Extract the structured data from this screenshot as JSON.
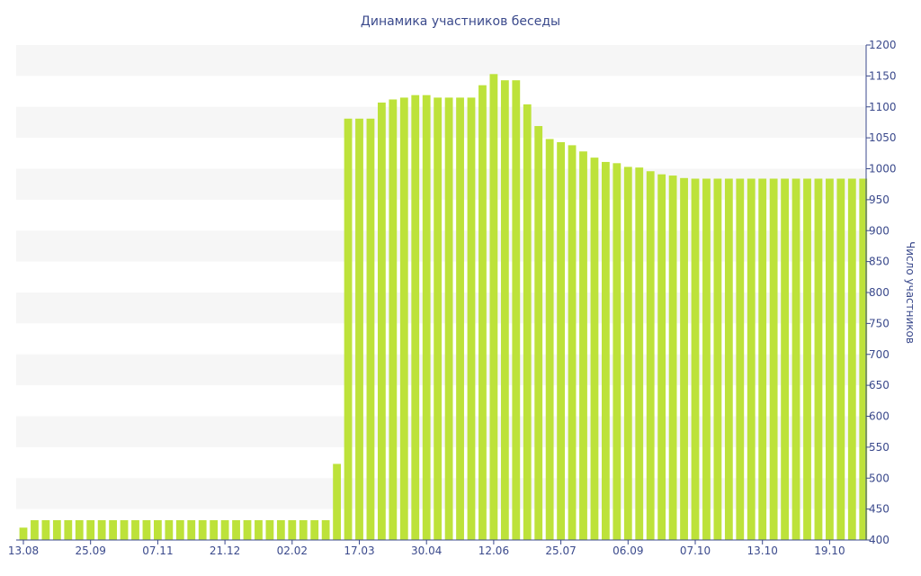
{
  "chart_data": {
    "type": "bar",
    "title": "Динамика участников беседы",
    "ylabel": "Число участников",
    "xlabel": "",
    "ylim": [
      400,
      1200
    ],
    "y_ticks": [
      400,
      450,
      500,
      550,
      600,
      650,
      700,
      750,
      800,
      850,
      900,
      950,
      1000,
      1050,
      1100,
      1150,
      1200
    ],
    "y_axis_side": "right",
    "grid": "alternating horizontal bands",
    "legend": "none",
    "bar_color": "#bde23a",
    "text_color": "#3b4a8c",
    "band_color": "#f6f6f6",
    "x_tick_labels": [
      {
        "index": 0,
        "label": "13.08"
      },
      {
        "index": 6,
        "label": "25.09"
      },
      {
        "index": 12,
        "label": "07.11"
      },
      {
        "index": 18,
        "label": "21.12"
      },
      {
        "index": 24,
        "label": "02.02"
      },
      {
        "index": 30,
        "label": "17.03"
      },
      {
        "index": 36,
        "label": "30.04"
      },
      {
        "index": 42,
        "label": "12.06"
      },
      {
        "index": 48,
        "label": "25.07"
      },
      {
        "index": 54,
        "label": "06.09"
      },
      {
        "index": 60,
        "label": "07.10"
      },
      {
        "index": 66,
        "label": "13.10"
      },
      {
        "index": 72,
        "label": "19.10"
      }
    ],
    "values": [
      420,
      432,
      432,
      432,
      432,
      432,
      432,
      432,
      432,
      432,
      432,
      432,
      432,
      432,
      432,
      432,
      432,
      432,
      432,
      432,
      432,
      432,
      432,
      432,
      432,
      432,
      432,
      432,
      523,
      1081,
      1081,
      1081,
      1107,
      1112,
      1115,
      1119,
      1119,
      1115,
      1115,
      1115,
      1115,
      1135,
      1153,
      1143,
      1143,
      1104,
      1069,
      1048,
      1043,
      1038,
      1028,
      1018,
      1011,
      1009,
      1003,
      1002,
      996,
      991,
      989,
      985,
      984,
      984,
      984,
      984,
      984,
      984,
      984,
      984,
      984,
      984,
      984,
      984,
      984,
      984,
      984,
      984
    ]
  }
}
